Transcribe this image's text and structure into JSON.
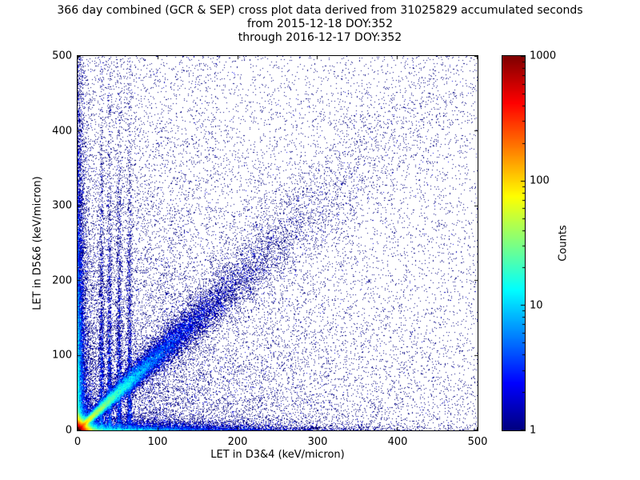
{
  "figure": {
    "background": "#ffffff",
    "frame_color": "#000000"
  },
  "chart_data": {
    "type": "heatmap",
    "title_lines": [
      "366 day combined (GCR & SEP) cross plot data derived from 31025829 accumulated seconds",
      "from 2015-12-18 DOY:352",
      "through 2016-12-17 DOY:352"
    ],
    "xlabel": "LET in D3&4 (keV/micron)",
    "ylabel": "LET in D5&6 (keV/micron)",
    "xlim": [
      0,
      500
    ],
    "ylim": [
      0,
      500
    ],
    "x_ticks": [
      0,
      100,
      200,
      300,
      400,
      500
    ],
    "y_ticks": [
      0,
      100,
      200,
      300,
      400,
      500
    ],
    "grid": false,
    "legend": "none",
    "single_count_color": "#00008b",
    "colorbar": {
      "label": "Counts",
      "scale": "log",
      "min": 1,
      "max": 1000,
      "ticks": [
        1,
        10,
        100,
        1000
      ],
      "colormap": "jet",
      "position": "right"
    },
    "density_model": {
      "description": "2D histogram of coincident LET values; hot core at origin reaching ~1000 counts, bright y=x correlation band fading by ~350, dense bands hugging both axes, faint vertical streaks near x=30-65, sparse single-count speckle across full range",
      "seed": 42,
      "components": [
        {
          "name": "origin-core",
          "type": "exp2",
          "n": 45000,
          "sx": 4.5,
          "sy": 4.5
        },
        {
          "name": "diagonal-near",
          "type": "diagonal",
          "n": 32000,
          "scale": 55,
          "spread0": 1.5,
          "spread_k": 0.09
        },
        {
          "name": "diagonal-far",
          "type": "diagonal",
          "n": 7000,
          "scale": 170,
          "spread0": 6,
          "spread_k": 0.11
        },
        {
          "name": "x-axis-band",
          "type": "band-x",
          "n": 9000,
          "scale": 95,
          "yscale": 4.5
        },
        {
          "name": "y-axis-band",
          "type": "band-y",
          "n": 12000,
          "scale": 130,
          "xscale": 4
        },
        {
          "name": "vertical-streaks",
          "type": "streaks",
          "n": 6500,
          "xs": [
            30,
            40,
            52,
            65
          ],
          "xspread": 1.6,
          "yscale": 140
        },
        {
          "name": "diffuse-lowerleft",
          "type": "diffuse",
          "n": 15000,
          "scale": 170
        },
        {
          "name": "sparse-speckle",
          "type": "uniform",
          "n": 7000
        }
      ]
    }
  }
}
